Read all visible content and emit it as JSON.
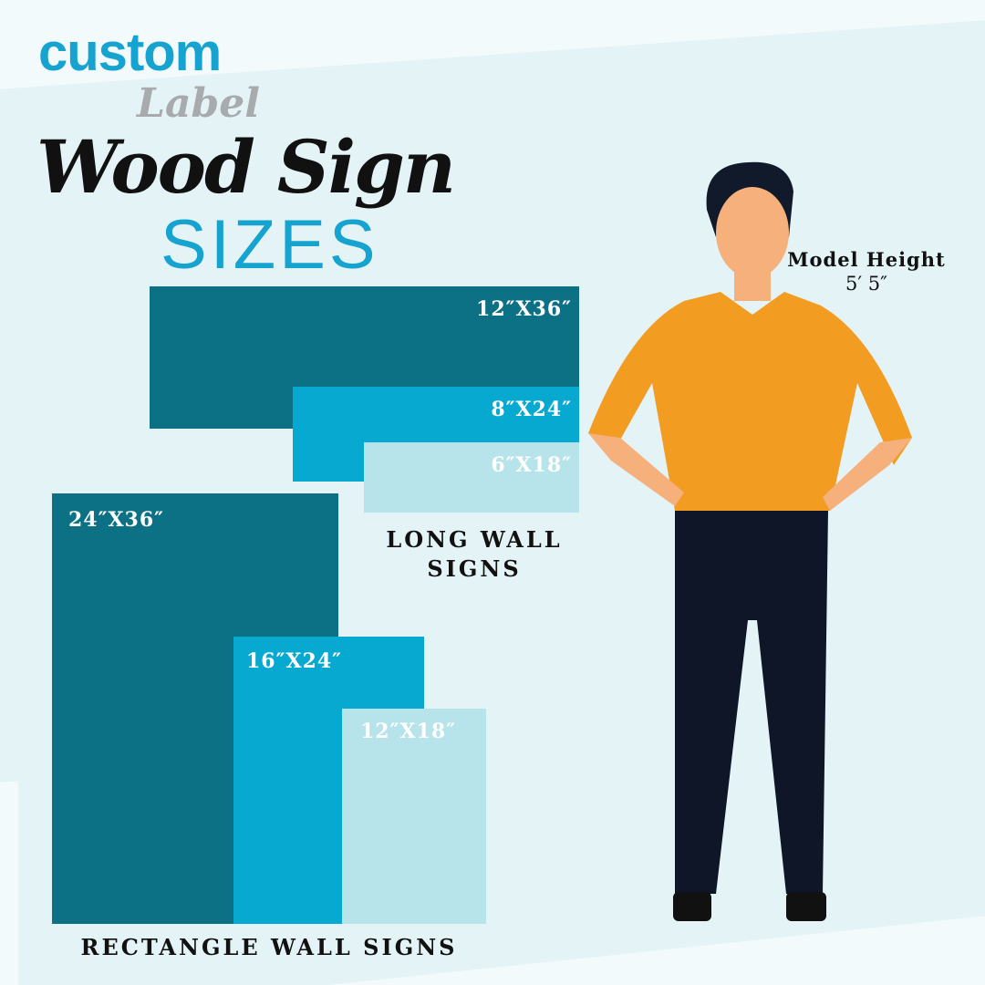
{
  "logo": {
    "brand": "custom",
    "sub": "Label"
  },
  "title": {
    "line1": "Wood Sign",
    "line2": "SIZES"
  },
  "long_wall": {
    "group_label_1": "LONG WALL",
    "group_label_2": "SIGNS",
    "sizes": [
      "12″X36″",
      "8″X24″",
      "6″X18″"
    ]
  },
  "rectangle_wall": {
    "group_label": "RECTANGLE WALL SIGNS",
    "sizes": [
      "24″X36″",
      "16″X24″",
      "12″X18″"
    ]
  },
  "model": {
    "label": "Model Height",
    "height": "5′ 5″"
  },
  "colors": {
    "dark": "#0c7185",
    "mid": "#08a9d1",
    "light": "#b7e3ea",
    "accent": "#16a3d0",
    "shirt": "#f39c22",
    "pants": "#0f1627"
  }
}
